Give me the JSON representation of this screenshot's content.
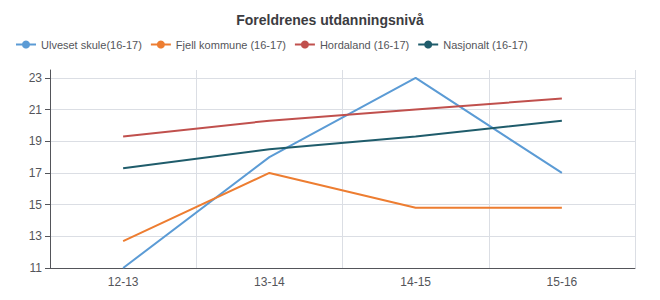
{
  "chart_data": {
    "type": "line",
    "title": "Foreldrenes utdanningsnivå",
    "categories": [
      "12-13",
      "13-14",
      "14-15",
      "15-16"
    ],
    "series": [
      {
        "name": "Ulveset skule(16-17)",
        "color": "#5B9BD5",
        "values": [
          11,
          18,
          23,
          17
        ]
      },
      {
        "name": "Fjell kommune (16-17)",
        "color": "#ED7D31",
        "values": [
          12.7,
          17,
          14.8,
          14.8
        ]
      },
      {
        "name": "Hordaland (16-17)",
        "color": "#C0504D",
        "values": [
          19.3,
          20.3,
          21.0,
          21.7
        ]
      },
      {
        "name": "Nasjonalt (16-17)",
        "color": "#1F5C6B",
        "values": [
          17.3,
          18.5,
          19.3,
          20.3
        ]
      }
    ],
    "ylim": [
      11,
      23.5
    ],
    "yticks": [
      11,
      13,
      15,
      17,
      19,
      21,
      23
    ],
    "grid": true,
    "legend": "upper left"
  }
}
